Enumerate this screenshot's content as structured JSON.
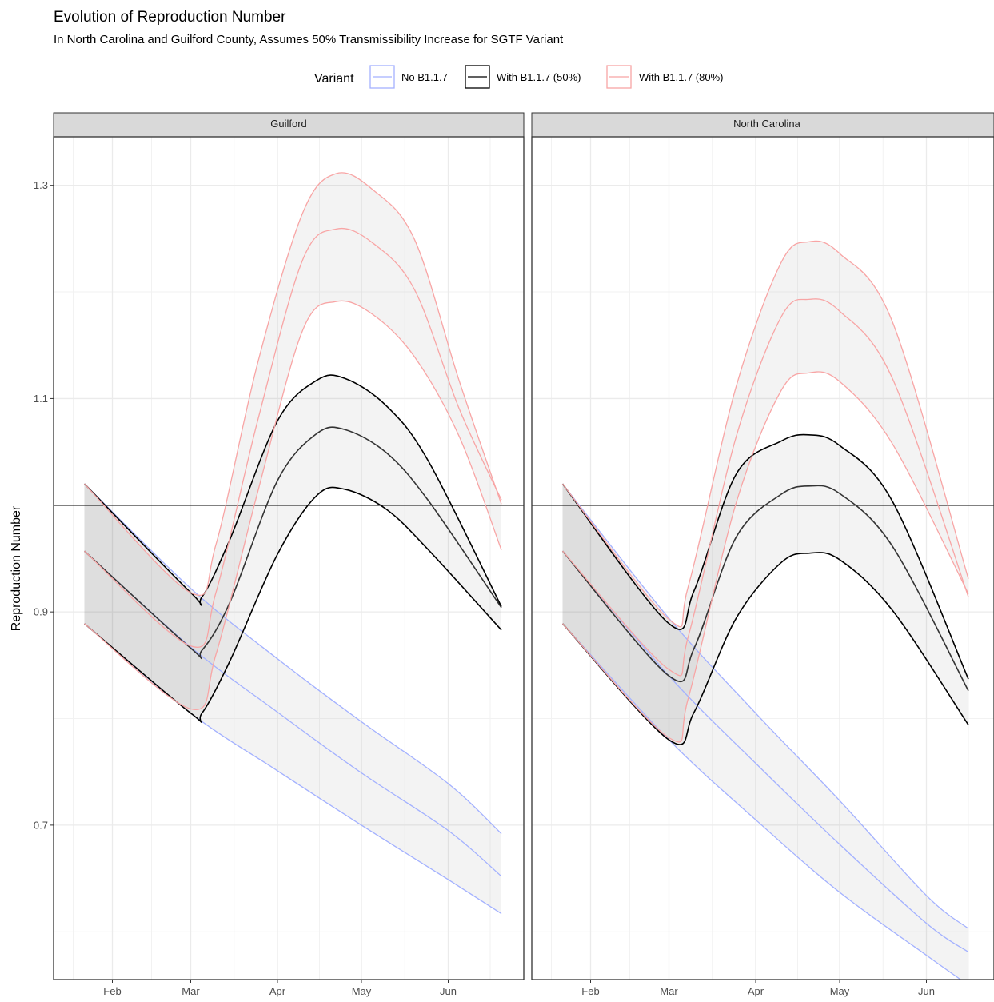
{
  "chart_data": {
    "type": "line",
    "title": "Evolution of Reproduction Number",
    "subtitle": "In North Carolina and Guilford County, Assumes 50% Transmissibility Increase for SGTF Variant",
    "ylabel": "Reproduction Number",
    "xlabel": "",
    "x_ticks": [
      "Feb",
      "Mar",
      "Apr",
      "May",
      "Jun"
    ],
    "x_tick_dates": [
      "2021-02-01",
      "2021-03-01",
      "2021-04-01",
      "2021-05-01",
      "2021-06-01"
    ],
    "y_ticks": [
      "0.7",
      "0.9",
      "1.1",
      "1.3"
    ],
    "ylim": [
      0.5552,
      1.3455
    ],
    "xlim": [
      "2021-01-11",
      "2021-06-28"
    ],
    "grid": true,
    "reference_line": 1.0,
    "legend": {
      "title": "Variant",
      "position": "top",
      "entries": [
        {
          "label": "No B1.1.7",
          "color": "#a3b1ff"
        },
        {
          "label": "With B1.1.7 (50%)",
          "color": "#000000"
        },
        {
          "label": "With B1.1.7 (80%)",
          "color": "#f8a5a5"
        }
      ]
    },
    "panels": [
      {
        "name": "Guilford",
        "series": [
          {
            "variant": "No B1.1.7",
            "x": [
              "2021-01-22",
              "2021-03-01",
              "2021-04-01",
              "2021-05-01",
              "2021-06-01",
              "2021-06-20"
            ],
            "low": [
              0.889,
              0.805,
              0.751,
              0.7,
              0.649,
              0.617
            ],
            "mid": [
              0.957,
              0.867,
              0.806,
              0.749,
              0.695,
              0.652
            ],
            "high": [
              1.02,
              0.922,
              0.856,
              0.797,
              0.739,
              0.692
            ]
          },
          {
            "variant": "With B1.1.7 (50%)",
            "x": [
              "2021-01-22",
              "2021-03-01",
              "2021-03-05",
              "2021-03-15",
              "2021-04-01",
              "2021-04-15",
              "2021-04-25",
              "2021-05-10",
              "2021-05-25",
              "2021-06-20"
            ],
            "low": [
              0.889,
              0.805,
              0.805,
              0.854,
              0.954,
              1.009,
              1.015,
              0.996,
              0.958,
              0.883
            ],
            "mid": [
              0.957,
              0.866,
              0.864,
              0.909,
              1.023,
              1.067,
              1.071,
              1.049,
              1.004,
              0.904
            ],
            "high": [
              1.02,
              0.918,
              0.914,
              0.968,
              1.079,
              1.117,
              1.119,
              1.093,
              1.041,
              0.905
            ]
          },
          {
            "variant": "With B1.1.7 (80%)",
            "x": [
              "2021-01-22",
              "2021-03-01",
              "2021-03-10",
              "2021-03-25",
              "2021-04-10",
              "2021-04-22",
              "2021-05-05",
              "2021-05-20",
              "2021-06-05",
              "2021-06-20"
            ],
            "low": [
              0.889,
              0.809,
              0.86,
              1.013,
              1.164,
              1.191,
              1.179,
              1.139,
              1.064,
              0.958
            ],
            "mid": [
              0.957,
              0.868,
              0.918,
              1.08,
              1.23,
              1.259,
              1.246,
              1.202,
              1.09,
              1.005
            ],
            "high": [
              1.02,
              0.918,
              0.963,
              1.134,
              1.274,
              1.311,
              1.296,
              1.249,
              1.116,
              1.001
            ]
          }
        ]
      },
      {
        "name": "North Carolina",
        "series": [
          {
            "variant": "No B1.1.7",
            "x": [
              "2021-01-22",
              "2021-03-01",
              "2021-04-01",
              "2021-05-01",
              "2021-06-01",
              "2021-06-16"
            ],
            "low": [
              0.889,
              0.78,
              0.705,
              0.637,
              0.578,
              0.55
            ],
            "mid": [
              0.957,
              0.84,
              0.758,
              0.682,
              0.608,
              0.581
            ],
            "high": [
              1.02,
              0.894,
              0.805,
              0.723,
              0.634,
              0.603
            ]
          },
          {
            "variant": "With B1.1.7 (50%)",
            "x": [
              "2021-01-22",
              "2021-03-01",
              "2021-03-10",
              "2021-03-25",
              "2021-04-10",
              "2021-04-20",
              "2021-05-01",
              "2021-05-20",
              "2021-06-16"
            ],
            "low": [
              0.889,
              0.78,
              0.806,
              0.894,
              0.946,
              0.955,
              0.949,
              0.901,
              0.794
            ],
            "mid": [
              0.957,
              0.84,
              0.866,
              0.97,
              1.01,
              1.018,
              1.011,
              0.961,
              0.826
            ],
            "high": [
              1.02,
              0.889,
              0.92,
              1.029,
              1.06,
              1.066,
              1.056,
              1.003,
              0.837
            ]
          },
          {
            "variant": "With B1.1.7 (80%)",
            "x": [
              "2021-01-22",
              "2021-03-01",
              "2021-03-08",
              "2021-03-25",
              "2021-04-10",
              "2021-04-20",
              "2021-05-01",
              "2021-05-20",
              "2021-06-16"
            ],
            "low": [
              0.889,
              0.782,
              0.82,
              1.002,
              1.107,
              1.124,
              1.116,
              1.057,
              0.917
            ],
            "mid": [
              0.957,
              0.846,
              0.878,
              1.064,
              1.176,
              1.193,
              1.182,
              1.118,
              0.914
            ],
            "high": [
              1.02,
              0.893,
              0.925,
              1.111,
              1.227,
              1.247,
              1.236,
              1.171,
              0.931
            ]
          }
        ]
      }
    ]
  }
}
